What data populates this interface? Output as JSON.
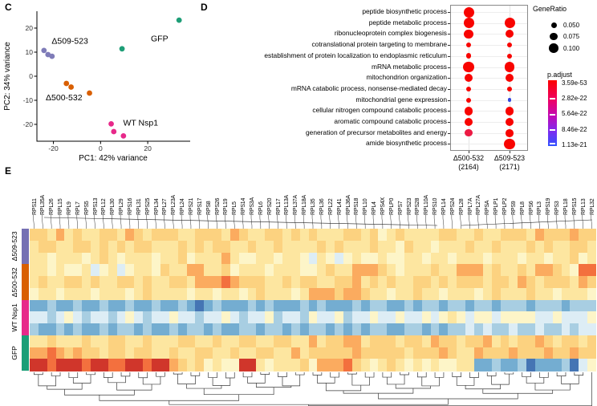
{
  "panels": {
    "c_letter": "C",
    "d_letter": "D",
    "e_letter": "E"
  },
  "chart_data": [
    {
      "id": "pca-plot",
      "type": "scatter",
      "xlabel": "PC1: 42% variance",
      "ylabel": "PC2: 34% variance",
      "xlim": [
        -27,
        38
      ],
      "ylim": [
        -27,
        27
      ],
      "xticks": [
        -20,
        0,
        20
      ],
      "yticks": [
        -20,
        -10,
        0,
        10,
        20
      ],
      "grid": false,
      "series": [
        {
          "name": "Δ509-523",
          "color": "#7f7cb8",
          "points": [
            [
              -24,
              10.7
            ],
            [
              -22.3,
              9.0
            ],
            [
              -20.6,
              8.3
            ]
          ]
        },
        {
          "name": "GFP",
          "color": "#1e9e77",
          "points": [
            [
              9.1,
              11.4
            ],
            [
              33.3,
              23.3
            ]
          ]
        },
        {
          "name": "Δ500-532",
          "color": "#d95f02",
          "points": [
            [
              -14.5,
              -3.0
            ],
            [
              -12.5,
              -4.5
            ],
            [
              -4.7,
              -7.0
            ]
          ]
        },
        {
          "name": "WT Nsp1",
          "color": "#e7298a",
          "points": [
            [
              4.5,
              -19.8
            ],
            [
              5.6,
              -23.0
            ],
            [
              9.7,
              -24.8
            ]
          ]
        }
      ],
      "annotations": [
        {
          "text": "Δ509-523",
          "x": -13,
          "y": 13.5
        },
        {
          "text": "GFP",
          "x": 25,
          "y": 14.5
        },
        {
          "text": "Δ500-532",
          "x": -15.5,
          "y": -10
        },
        {
          "text": "WT Nsp1",
          "x": 17,
          "y": -20.5
        }
      ]
    },
    {
      "id": "go-dotplot",
      "type": "scatter",
      "columns": [
        {
          "label": "Δ500-532",
          "count": "(2164)"
        },
        {
          "label": "Δ509-523",
          "count": "(2171)"
        }
      ],
      "rows": [
        {
          "label": "peptide biosynthetic process",
          "dots": [
            {
              "ratio": 0.1,
              "color": "#f80400"
            },
            null
          ]
        },
        {
          "label": "peptide metabolic process",
          "dots": [
            {
              "ratio": 0.1,
              "color": "#f80400"
            },
            {
              "ratio": 0.1,
              "color": "#f80400"
            }
          ]
        },
        {
          "label": "ribonucleoprotein complex biogenesis",
          "dots": [
            {
              "ratio": 0.085,
              "color": "#f80400"
            },
            {
              "ratio": 0.075,
              "color": "#f80400"
            }
          ]
        },
        {
          "label": "cotranslational protein targeting to membrane",
          "dots": [
            {
              "ratio": 0.046,
              "color": "#f80400"
            },
            {
              "ratio": 0.042,
              "color": "#f80400"
            }
          ]
        },
        {
          "label": "establishment of protein localization to endoplasmic reticulum",
          "dots": [
            {
              "ratio": 0.047,
              "color": "#f80400"
            },
            {
              "ratio": 0.043,
              "color": "#f80400"
            }
          ]
        },
        {
          "label": "mRNA metabolic process",
          "dots": [
            {
              "ratio": 0.103,
              "color": "#f80400"
            },
            {
              "ratio": 0.098,
              "color": "#f80400"
            }
          ]
        },
        {
          "label": "mitochondrion organization",
          "dots": [
            {
              "ratio": 0.08,
              "color": "#f80400"
            },
            {
              "ratio": 0.078,
              "color": "#f80400"
            }
          ]
        },
        {
          "label": "mRNA catabolic process, nonsense-mediated decay",
          "dots": [
            {
              "ratio": 0.046,
              "color": "#f80400"
            },
            {
              "ratio": 0.04,
              "color": "#f80400"
            }
          ]
        },
        {
          "label": "mitochondrial gene expression",
          "dots": [
            {
              "ratio": 0.043,
              "color": "#f80400"
            },
            {
              "ratio": 0.03,
              "color": "#3246df"
            }
          ]
        },
        {
          "label": "cellular nitrogen compound catabolic process",
          "dots": [
            {
              "ratio": 0.082,
              "color": "#f80400"
            },
            {
              "ratio": 0.08,
              "color": "#f80400"
            }
          ]
        },
        {
          "label": "aromatic compound catabolic process",
          "dots": [
            {
              "ratio": 0.076,
              "color": "#f80400"
            },
            {
              "ratio": 0.078,
              "color": "#f80400"
            }
          ]
        },
        {
          "label": "generation of precursor metabolites and energy",
          "dots": [
            {
              "ratio": 0.07,
              "color": "#ec1a43"
            },
            {
              "ratio": 0.072,
              "color": "#f80400"
            }
          ]
        },
        {
          "label": "amide biosynthetic process",
          "dots": [
            null,
            {
              "ratio": 0.105,
              "color": "#f80400"
            }
          ]
        }
      ],
      "legend": {
        "generatio": {
          "title": "GeneRatio",
          "items": [
            "0.050",
            "0.075",
            "0.100"
          ],
          "ratios": [
            0.05,
            0.075,
            0.1
          ]
        },
        "padjust": {
          "title": "p.adjust",
          "ticks": [
            "3.59e-53",
            "2.82e-22",
            "5.64e-22",
            "8.46e-22",
            "1.13e-21"
          ],
          "gradient": [
            "#fc0000",
            "#ee0164",
            "#c00bb8",
            "#7b2cf0",
            "#2f52ff"
          ]
        }
      }
    },
    {
      "id": "heatmap",
      "type": "heatmap",
      "col_labels": [
        "RPS11",
        "RPL35A",
        "RPL26",
        "RPL15",
        "RPL9",
        "RPL7",
        "RPS5",
        "RPS13",
        "RPL12",
        "RPL30",
        "RPL29",
        "RPS16",
        "RPL31",
        "RPS25",
        "RPL34",
        "RPL27",
        "RPL23A",
        "RPL24",
        "RPS21",
        "RPS17",
        "RPS8",
        "RPS26",
        "RPL19",
        "RPL5",
        "RPS14",
        "RPS3A",
        "RPL6",
        "RPS20",
        "RPL17",
        "RPL13A",
        "RPL37A",
        "RPL18A",
        "RPL35",
        "RPL36",
        "RPL22",
        "RPL41",
        "RPL36A",
        "RPS18",
        "RPL10",
        "RPL4",
        "RPS4X",
        "RPLP0",
        "RPS7",
        "RPS23",
        "RPS28",
        "RPL10A",
        "RPS10",
        "RPL14",
        "RPS24",
        "RPL28",
        "RPL7A",
        "RPL27A",
        "RPSA",
        "RPLP1",
        "RPLP2",
        "RPS9",
        "RPL8",
        "RPS6",
        "RPL3",
        "RPS19",
        "RPS3",
        "RPL18",
        "RPS15",
        "RPL13",
        "RPL32"
      ],
      "row_groups": [
        {
          "name": "Δ509-523",
          "color": "#7570b3",
          "rows": 3
        },
        {
          "name": "Δ500-532",
          "color": "#d95f02",
          "rows": 3
        },
        {
          "name": "WT Nsp1",
          "color": "#e7298a",
          "rows": 3
        },
        {
          "name": "GFP",
          "color": "#1b9e77",
          "rows": 3
        }
      ],
      "palette": [
        "#4575b4",
        "#74add1",
        "#a8cee2",
        "#ddedf5",
        "#fdf5c8",
        "#fde6a0",
        "#fcd280",
        "#fbab5f",
        "#f3703e",
        "#d0362b"
      ],
      "cells": [
        [
          "66575",
          "65566",
          "57656",
          "66556",
          "66576",
          "55665",
          "65655",
          "56656",
          "45655",
          "55665",
          "56556",
          "66576",
          "66766"
        ],
        [
          "56655",
          "66565",
          "65665",
          "55656",
          "56655",
          "65565",
          "55565",
          "65556",
          "55465",
          "54555",
          "65565",
          "55656",
          "55665"
        ],
        [
          "55455",
          "54565",
          "45554",
          "55645",
          "55754",
          "45545",
          "54354",
          "34544",
          "54455",
          "45545",
          "55455",
          "54554",
          "55645"
        ],
        [
          "55454",
          "45345",
          "34554",
          "65577",
          "55645",
          "55455",
          "54456",
          "55777",
          "65455",
          "56557",
          "77565",
          "56577",
          "65488"
        ],
        [
          "56556",
          "65655",
          "66565",
          "56657",
          "77876",
          "66556",
          "56655",
          "66756",
          "56556",
          "65656",
          "66566",
          "57656",
          "66576"
        ],
        [
          "45545",
          "55455",
          "54565",
          "55545",
          "54554",
          "56555",
          "45777",
          "67765",
          "54556",
          "55455",
          "54565",
          "55655",
          "45554"
        ],
        [
          "11211",
          "21121",
          "12112",
          "11210",
          "12111",
          "21211",
          "12121",
          "11212",
          "21121",
          "22122",
          "12212",
          "22122",
          "21222"
        ],
        [
          "33234",
          "32332",
          "34323",
          "34332",
          "33432",
          "33423",
          "32433",
          "42334",
          "33433",
          "43454",
          "34434",
          "44433",
          "43334"
        ],
        [
          "21121",
          "21121",
          "22121",
          "12122",
          "12112",
          "21221",
          "21221",
          "21212",
          "21122",
          "12122",
          "32322",
          "32232",
          "23233"
        ],
        [
          "55655",
          "56556",
          "65565",
          "55665",
          "56556",
          "65566",
          "55756",
          "67756",
          "66566",
          "57665",
          "66756",
          "56676",
          "56656"
        ],
        [
          "77876",
          "76656",
          "65665",
          "56556",
          "65565",
          "56655",
          "75666",
          "66766",
          "66656",
          "66765",
          "57666",
          "76667",
          "66766"
        ],
        [
          "99899",
          "98998",
          "89989",
          "97656",
          "45449",
          "95455",
          "56477",
          "78654",
          "56545",
          "45445",
          "51121",
          "12011",
          "12034"
        ]
      ]
    }
  ]
}
